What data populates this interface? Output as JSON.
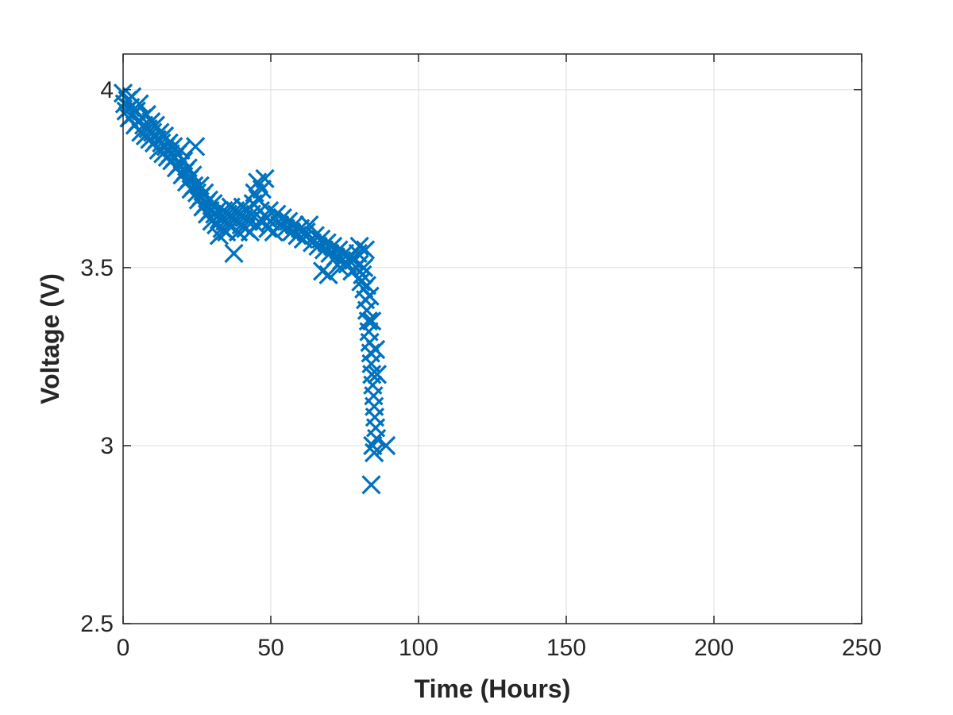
{
  "chart_data": {
    "type": "scatter",
    "title": "",
    "xlabel": "Time (Hours)",
    "ylabel": "Voltage (V)",
    "xlim": [
      0,
      250
    ],
    "ylim": [
      2.5,
      4.1
    ],
    "xticks": [
      0,
      50,
      100,
      150,
      200,
      250
    ],
    "xtick_labels": [
      "0",
      "50",
      "100",
      "150",
      "200",
      "250"
    ],
    "yticks": [
      2.5,
      3,
      3.5,
      4
    ],
    "ytick_labels": [
      "2.5",
      "3",
      "3.5",
      "4"
    ],
    "grid": true,
    "legend": "none",
    "marker": "x",
    "color": "#0072BD",
    "series": [
      {
        "values": [
          [
            0,
            3.99
          ],
          [
            0.5,
            3.96
          ],
          [
            1,
            3.94
          ],
          [
            1.5,
            3.97
          ],
          [
            2,
            3.92
          ],
          [
            2.5,
            3.95
          ],
          [
            3,
            3.98
          ],
          [
            3.5,
            3.93
          ],
          [
            4,
            3.9
          ],
          [
            4.5,
            3.94
          ],
          [
            5,
            3.91
          ],
          [
            5.5,
            3.96
          ],
          [
            6,
            3.88
          ],
          [
            6.5,
            3.92
          ],
          [
            7,
            3.9
          ],
          [
            7.5,
            3.87
          ],
          [
            8,
            3.93
          ],
          [
            8.5,
            3.89
          ],
          [
            9,
            3.86
          ],
          [
            9.5,
            3.91
          ],
          [
            10,
            3.88
          ],
          [
            10.5,
            3.85
          ],
          [
            11,
            3.9
          ],
          [
            11.5,
            3.86
          ],
          [
            12,
            3.83
          ],
          [
            12.5,
            3.88
          ],
          [
            13,
            3.85
          ],
          [
            13.5,
            3.82
          ],
          [
            14,
            3.87
          ],
          [
            14.5,
            3.84
          ],
          [
            15,
            3.81
          ],
          [
            15.5,
            3.85
          ],
          [
            16,
            3.82
          ],
          [
            16.5,
            3.8
          ],
          [
            17,
            3.84
          ],
          [
            17.5,
            3.81
          ],
          [
            18,
            3.78
          ],
          [
            18.5,
            3.82
          ],
          [
            19,
            3.79
          ],
          [
            19.5,
            3.83
          ],
          [
            20,
            3.76
          ],
          [
            20.5,
            3.8
          ],
          [
            21,
            3.77
          ],
          [
            21.5,
            3.74
          ],
          [
            22,
            3.78
          ],
          [
            22.5,
            3.75
          ],
          [
            23,
            3.72
          ],
          [
            23.5,
            3.76
          ],
          [
            24,
            3.73
          ],
          [
            24.5,
            3.84
          ],
          [
            25,
            3.71
          ],
          [
            25.5,
            3.69
          ],
          [
            26,
            3.73
          ],
          [
            26.5,
            3.7
          ],
          [
            27,
            3.67
          ],
          [
            27.5,
            3.71
          ],
          [
            28,
            3.68
          ],
          [
            28.5,
            3.65
          ],
          [
            29,
            3.69
          ],
          [
            29.5,
            3.66
          ],
          [
            30,
            3.63
          ],
          [
            30.5,
            3.68
          ],
          [
            31,
            3.65
          ],
          [
            31.5,
            3.62
          ],
          [
            32,
            3.66
          ],
          [
            32.5,
            3.59
          ],
          [
            33,
            3.64
          ],
          [
            33.5,
            3.61
          ],
          [
            34,
            3.66
          ],
          [
            34.5,
            3.63
          ],
          [
            35,
            3.6
          ],
          [
            35.5,
            3.65
          ],
          [
            36,
            3.62
          ],
          [
            36.5,
            3.67
          ],
          [
            37,
            3.64
          ],
          [
            37.5,
            3.54
          ],
          [
            38,
            3.66
          ],
          [
            38.5,
            3.63
          ],
          [
            39,
            3.6
          ],
          [
            39.5,
            3.65
          ],
          [
            40,
            3.62
          ],
          [
            40.5,
            3.67
          ],
          [
            41,
            3.64
          ],
          [
            41.5,
            3.61
          ],
          [
            42,
            3.66
          ],
          [
            42.5,
            3.63
          ],
          [
            43,
            3.6
          ],
          [
            43.5,
            3.65
          ],
          [
            44,
            3.68
          ],
          [
            44.5,
            3.71
          ],
          [
            45,
            3.62
          ],
          [
            45.5,
            3.74
          ],
          [
            46,
            3.69
          ],
          [
            46.5,
            3.66
          ],
          [
            47,
            3.72
          ],
          [
            47.5,
            3.63
          ],
          [
            48,
            3.75
          ],
          [
            48.5,
            3.64
          ],
          [
            49,
            3.61
          ],
          [
            49.5,
            3.66
          ],
          [
            50,
            3.63
          ],
          [
            51,
            3.6
          ],
          [
            52,
            3.65
          ],
          [
            53,
            3.62
          ],
          [
            54,
            3.64
          ],
          [
            55,
            3.61
          ],
          [
            56,
            3.63
          ],
          [
            57,
            3.6
          ],
          [
            58,
            3.62
          ],
          [
            59,
            3.59
          ],
          [
            60,
            3.61
          ],
          [
            61,
            3.58
          ],
          [
            62,
            3.6
          ],
          [
            63,
            3.62
          ],
          [
            64,
            3.57
          ],
          [
            65,
            3.59
          ],
          [
            66,
            3.56
          ],
          [
            67,
            3.58
          ],
          [
            67.5,
            3.49
          ],
          [
            68,
            3.55
          ],
          [
            69,
            3.57
          ],
          [
            69.5,
            3.48
          ],
          [
            70,
            3.54
          ],
          [
            71,
            3.56
          ],
          [
            72,
            3.53
          ],
          [
            73,
            3.55
          ],
          [
            73.5,
            3.5
          ],
          [
            74,
            3.52
          ],
          [
            75,
            3.54
          ],
          [
            76,
            3.51
          ],
          [
            77,
            3.53
          ],
          [
            77.5,
            3.49
          ],
          [
            78,
            3.52
          ],
          [
            79,
            3.5
          ],
          [
            79.5,
            3.54
          ],
          [
            80,
            3.51
          ],
          [
            80.5,
            3.46
          ],
          [
            81,
            3.48
          ],
          [
            81.5,
            3.44
          ],
          [
            82,
            3.41
          ],
          [
            82.5,
            3.38
          ],
          [
            83,
            3.35
          ],
          [
            83.2,
            3.32
          ],
          [
            83.5,
            3.29
          ],
          [
            83.8,
            3.26
          ],
          [
            84,
            3.23
          ],
          [
            84.2,
            3.2
          ],
          [
            84.5,
            3.17
          ],
          [
            84.8,
            3.14
          ],
          [
            85,
            3.11
          ],
          [
            85.2,
            3.08
          ],
          [
            85.5,
            3.05
          ],
          [
            85.8,
            3.02
          ],
          [
            84.5,
            3.0
          ],
          [
            85,
            2.98
          ],
          [
            84,
            2.89
          ],
          [
            89,
            3.0
          ],
          [
            86,
            3.2
          ],
          [
            85.5,
            3.27
          ],
          [
            84.2,
            3.35
          ],
          [
            83.5,
            3.42
          ],
          [
            82.5,
            3.45
          ],
          [
            81.5,
            3.5
          ],
          [
            82,
            3.55
          ],
          [
            80,
            3.56
          ]
        ]
      }
    ]
  }
}
